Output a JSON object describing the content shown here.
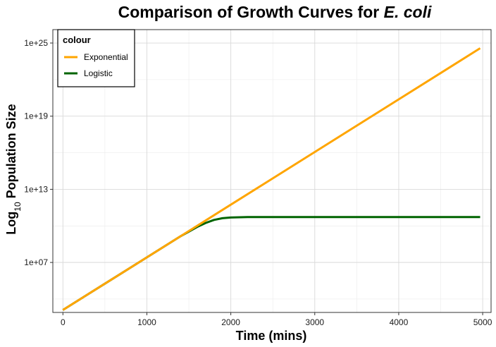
{
  "chart_data": {
    "type": "line",
    "title": "Comparison of Growth Curves for",
    "title_italic": "E. coli",
    "xlabel": "Time (mins)",
    "ylabel_main": "Log",
    "ylabel_sub": "10",
    "ylabel_rest": " Population Size",
    "y_scale": "log10",
    "xlim": [
      -120,
      5100
    ],
    "ylim_log10": [
      2.9,
      26.1
    ],
    "x_ticks": [
      0,
      1000,
      2000,
      3000,
      4000,
      5000
    ],
    "x_tick_labels": [
      "0",
      "1000",
      "2000",
      "3000",
      "4000",
      "5000"
    ],
    "y_ticks_log10": [
      7,
      13,
      19,
      25
    ],
    "y_tick_labels": [
      "1e+07",
      "1e+13",
      "1e+19",
      "1e+25"
    ],
    "grid": true,
    "legend": {
      "title": "colour",
      "position": "top-left"
    },
    "series": [
      {
        "name": "Exponential",
        "color": "#FFA500",
        "x": [
          0,
          1000,
          2000,
          3000,
          4000,
          4970
        ],
        "y_log10": [
          3.1,
          7.42,
          11.74,
          16.06,
          20.38,
          24.57
        ]
      },
      {
        "name": "Logistic",
        "color": "#006400",
        "x": [
          0,
          500,
          1000,
          1400,
          1600,
          1700,
          1800,
          1900,
          2000,
          2200,
          2500,
          3000,
          4000,
          4970
        ],
        "y_log10": [
          3.1,
          5.26,
          7.42,
          9.14,
          9.92,
          10.24,
          10.49,
          10.63,
          10.69,
          10.72,
          10.72,
          10.72,
          10.72,
          10.72
        ]
      }
    ]
  }
}
